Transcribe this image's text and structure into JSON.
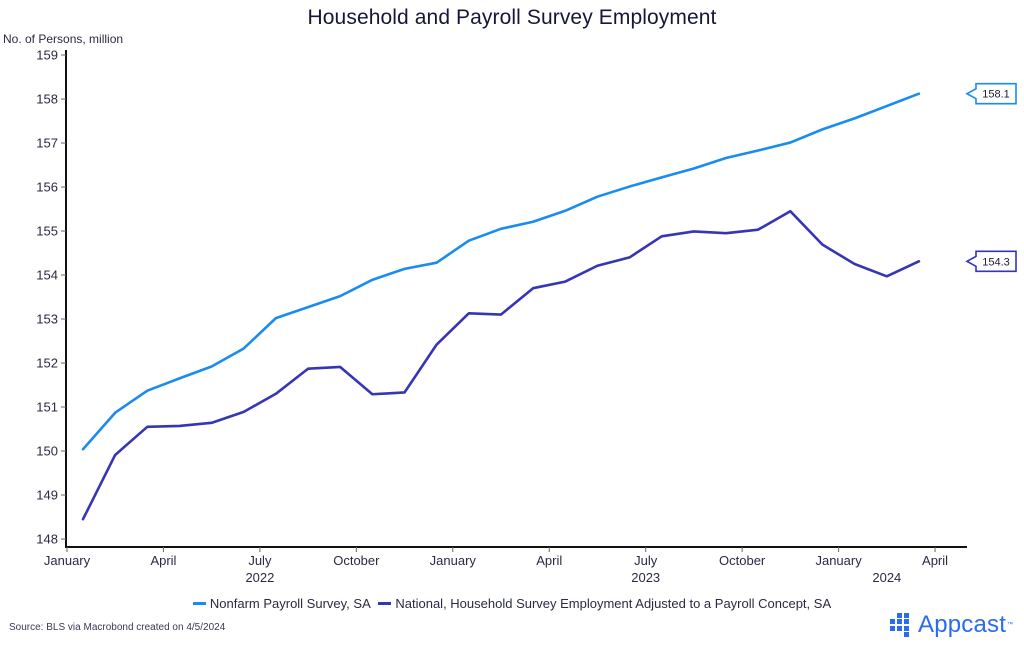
{
  "colors": {
    "payroll": "#1a8cf0",
    "household": "#3535b5",
    "axis": "#111111",
    "brand": "#2a6cf0"
  },
  "chart_data": {
    "type": "line",
    "title": "Household and Payroll Survey Employment",
    "ylabel": "No. of Persons, million",
    "xlabel": "",
    "ylim": [
      148,
      159
    ],
    "yticks": [
      148,
      149,
      150,
      151,
      152,
      153,
      154,
      155,
      156,
      157,
      158,
      159
    ],
    "grid": false,
    "legend_position": "bottom",
    "x": [
      "2022-01",
      "2022-02",
      "2022-03",
      "2022-04",
      "2022-05",
      "2022-06",
      "2022-07",
      "2022-08",
      "2022-09",
      "2022-10",
      "2022-11",
      "2022-12",
      "2023-01",
      "2023-02",
      "2023-03",
      "2023-04",
      "2023-05",
      "2023-06",
      "2023-07",
      "2023-08",
      "2023-09",
      "2023-10",
      "2023-11",
      "2023-12",
      "2024-01",
      "2024-02",
      "2024-03"
    ],
    "xticks": [
      {
        "label": "January",
        "year": "",
        "month_index": 0
      },
      {
        "label": "April",
        "year": "",
        "month_index": 3
      },
      {
        "label": "July",
        "year": "2022",
        "month_index": 6
      },
      {
        "label": "October",
        "year": "",
        "month_index": 9
      },
      {
        "label": "January",
        "year": "",
        "month_index": 12
      },
      {
        "label": "April",
        "year": "",
        "month_index": 15
      },
      {
        "label": "July",
        "year": "2023",
        "month_index": 18
      },
      {
        "label": "October",
        "year": "",
        "month_index": 21
      },
      {
        "label": "January",
        "year": "",
        "month_index": 24
      },
      {
        "label": "April",
        "year": "",
        "month_index": 27
      }
    ],
    "year_labels": [
      {
        "label": "2022",
        "month_index": 6
      },
      {
        "label": "2023",
        "month_index": 18
      },
      {
        "label": "2024",
        "month_index": 25.5
      }
    ],
    "series": [
      {
        "name": "Nonfarm Payroll Survey, SA",
        "color_key": "payroll",
        "end_label": "158.1",
        "values": [
          150.04,
          150.87,
          151.37,
          151.65,
          151.92,
          152.33,
          153.02,
          153.27,
          153.52,
          153.89,
          154.14,
          154.28,
          154.78,
          155.05,
          155.21,
          155.46,
          155.78,
          156.01,
          156.22,
          156.42,
          156.66,
          156.83,
          157.01,
          157.31,
          157.56,
          157.84,
          158.12
        ]
      },
      {
        "name": "National, Household Survey Employment Adjusted to a Payroll Concept, SA",
        "color_key": "household",
        "end_label": "154.3",
        "values": [
          148.45,
          149.91,
          150.55,
          150.57,
          150.64,
          150.89,
          151.3,
          151.87,
          151.91,
          151.29,
          151.33,
          152.42,
          153.13,
          153.1,
          153.7,
          153.85,
          154.21,
          154.4,
          154.88,
          154.99,
          154.95,
          155.03,
          155.45,
          154.69,
          154.25,
          153.97,
          154.31
        ]
      }
    ]
  },
  "footer": {
    "source": "Source: BLS via Macrobond created on 4/5/2024",
    "brand": "Appcast",
    "trademark": "™"
  }
}
